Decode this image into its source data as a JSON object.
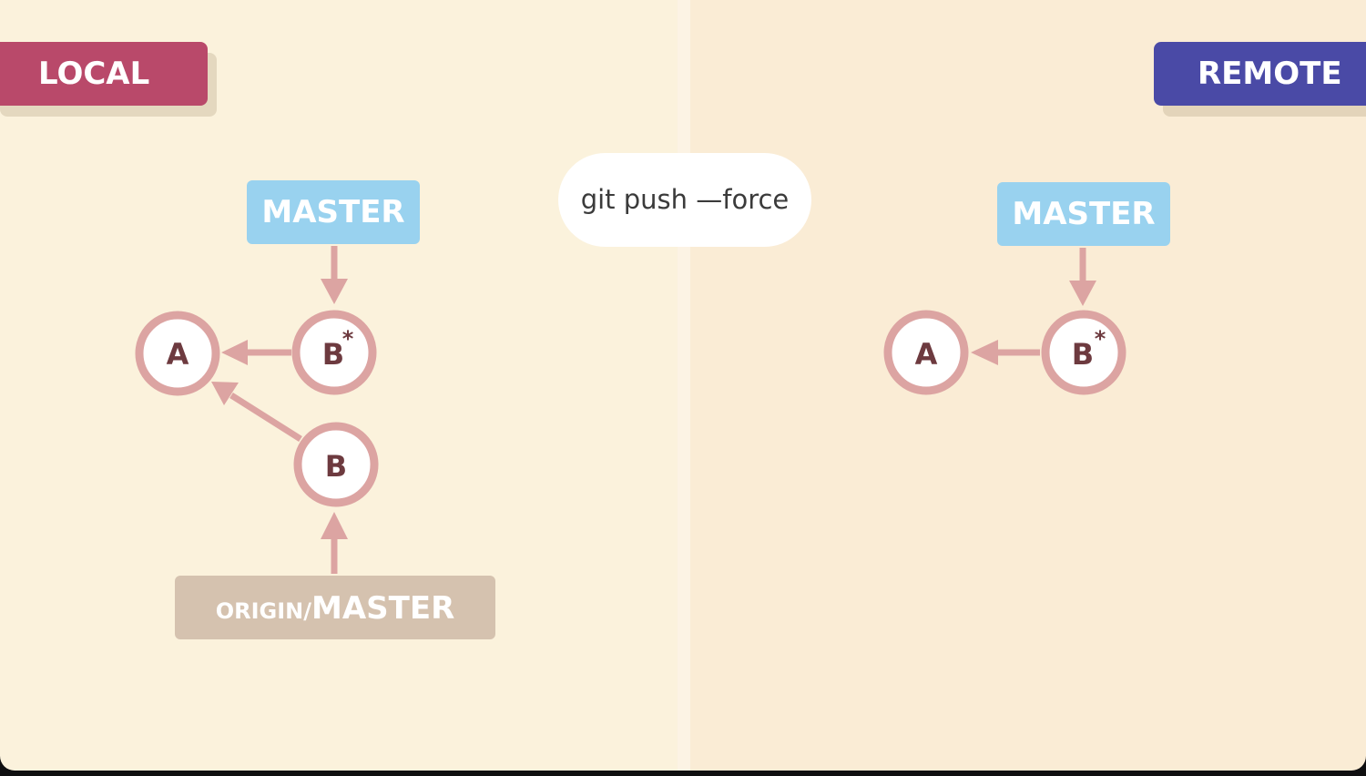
{
  "panels": {
    "local_label": "LOCAL",
    "remote_label": "REMOTE"
  },
  "command": "git push —force",
  "local": {
    "master_label": "MASTER",
    "origin_prefix": "ORIGIN/",
    "origin_suffix": "MASTER",
    "commits": [
      "A",
      "B",
      "B"
    ],
    "asterisk": "*"
  },
  "remote": {
    "master_label": "MASTER",
    "commits": [
      "A",
      "B"
    ],
    "asterisk": "*"
  },
  "colors": {
    "local": "#b9496a",
    "remote": "#4a4aa6",
    "master": "#99d2ef",
    "origin": "#d5c2af",
    "commit_ring": "#dca4a2",
    "arrow": "#dca4a2"
  }
}
